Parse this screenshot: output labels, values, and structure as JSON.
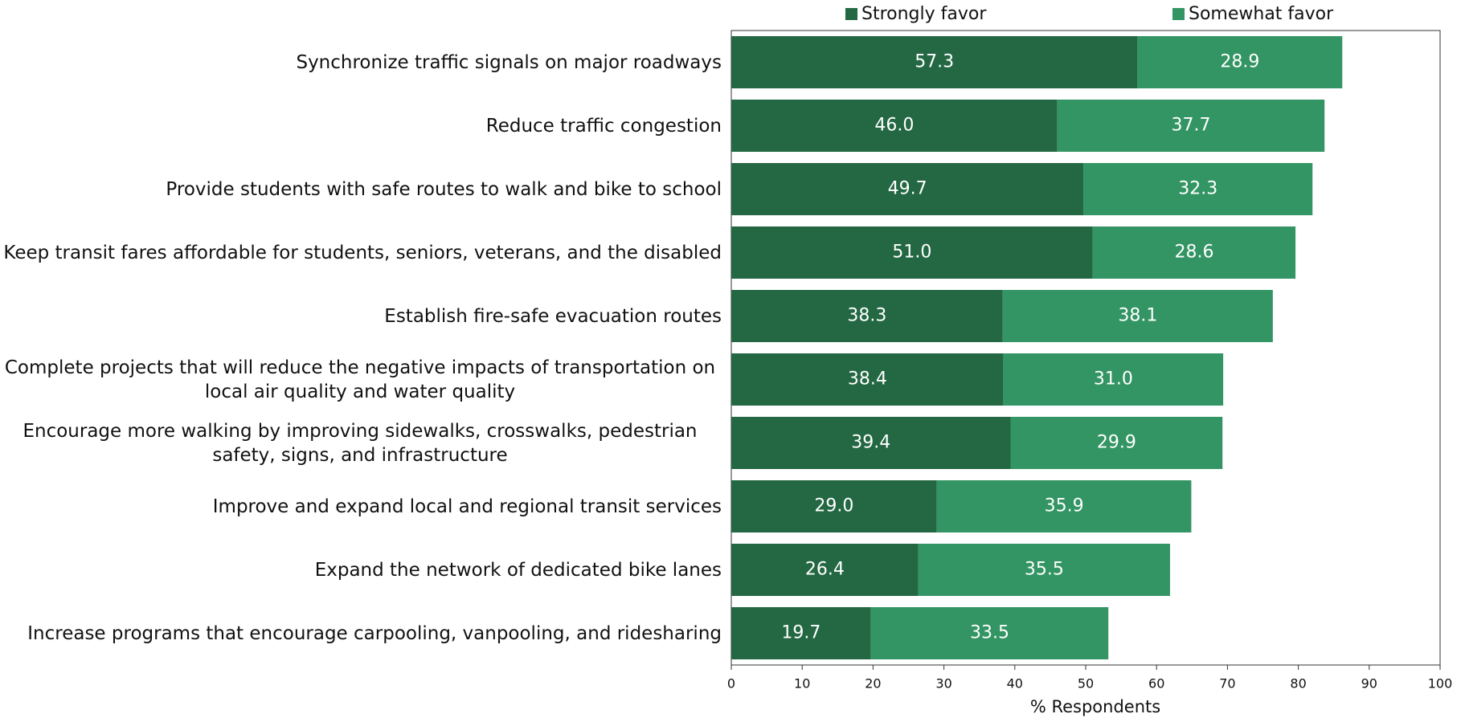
{
  "chart_data": {
    "type": "stacked_bar_horizontal",
    "categories": [
      "Synchronize traffic signals on major roadways",
      "Reduce traffic congestion",
      "Provide students with safe routes to walk and bike to school",
      "Keep transit fares affordable for students, seniors, veterans, and the disabled",
      "Establish fire-safe evacuation routes",
      "Complete projects that will reduce the negative impacts of transportation on local air quality and water quality",
      "Encourage more walking by improving sidewalks, crosswalks, pedestrian safety, signs, and infrastructure",
      "Improve and expand local and regional transit services",
      "Expand the network of dedicated bike lanes",
      "Increase programs that encourage carpooling, vanpooling, and ridesharing"
    ],
    "series": [
      {
        "name": "Strongly favor",
        "color": "#236843",
        "values": [
          57.3,
          46.0,
          49.7,
          51.0,
          38.3,
          38.4,
          39.4,
          29.0,
          26.4,
          19.7
        ],
        "value_labels": [
          "57.3",
          "46.0",
          "49.7",
          "51.0",
          "38.3",
          "38.4",
          "39.4",
          "29.0",
          "26.4",
          "19.7"
        ]
      },
      {
        "name": "Somewhat favor",
        "color": "#339563",
        "values": [
          28.9,
          37.7,
          32.3,
          28.6,
          38.1,
          31.0,
          29.9,
          35.9,
          35.5,
          33.5
        ],
        "value_labels": [
          "28.9",
          "37.7",
          "32.3",
          "28.6",
          "38.1",
          "31.0",
          "29.9",
          "35.9",
          "35.5",
          "33.5"
        ]
      }
    ],
    "xlabel": "% Respondents",
    "xlim": [
      0,
      100
    ],
    "xticks": [
      0,
      10,
      20,
      30,
      40,
      50,
      60,
      70,
      80,
      90,
      100
    ],
    "legend": "top"
  }
}
